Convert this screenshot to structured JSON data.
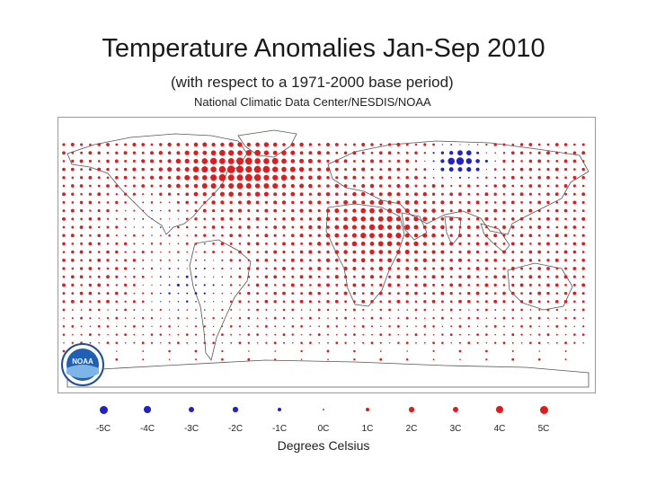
{
  "header": {
    "title": "Temperature Anomalies Jan-Sep 2010",
    "subtitle": "(with respect to a 1971-2000 base period)",
    "source": "National Climatic Data Center/NESDIS/NOAA"
  },
  "logo": {
    "text": "NOAA"
  },
  "colors": {
    "warm": "#e31a1c",
    "cool": "#1f22c9",
    "land_outline": "#555555"
  },
  "legend": {
    "units_label": "Degrees Celsius",
    "items": [
      {
        "label": "-5C",
        "value": -5
      },
      {
        "label": "-4C",
        "value": -4
      },
      {
        "label": "-3C",
        "value": -3
      },
      {
        "label": "-2C",
        "value": -2
      },
      {
        "label": "-1C",
        "value": -1
      },
      {
        "label": "0C",
        "value": 0
      },
      {
        "label": "1C",
        "value": 1
      },
      {
        "label": "2C",
        "value": 2
      },
      {
        "label": "3C",
        "value": 3
      },
      {
        "label": "4C",
        "value": 4
      },
      {
        "label": "5C",
        "value": 5
      }
    ]
  }
}
